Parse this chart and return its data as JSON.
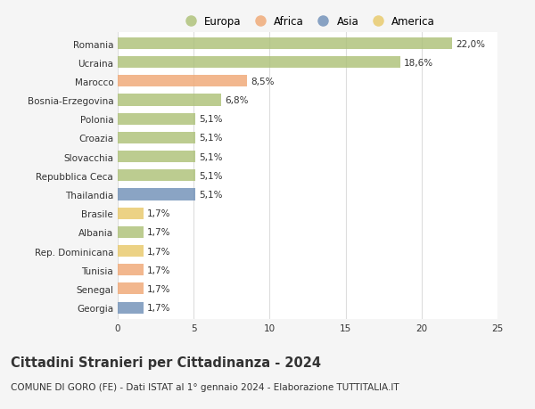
{
  "categories": [
    "Romania",
    "Ucraina",
    "Marocco",
    "Bosnia-Erzegovina",
    "Polonia",
    "Croazia",
    "Slovacchia",
    "Repubblica Ceca",
    "Thailandia",
    "Brasile",
    "Albania",
    "Rep. Dominicana",
    "Tunisia",
    "Senegal",
    "Georgia"
  ],
  "values": [
    22.0,
    18.6,
    8.5,
    6.8,
    5.1,
    5.1,
    5.1,
    5.1,
    5.1,
    1.7,
    1.7,
    1.7,
    1.7,
    1.7,
    1.7
  ],
  "labels": [
    "22,0%",
    "18,6%",
    "8,5%",
    "6,8%",
    "5,1%",
    "5,1%",
    "5,1%",
    "5,1%",
    "5,1%",
    "1,7%",
    "1,7%",
    "1,7%",
    "1,7%",
    "1,7%",
    "1,7%"
  ],
  "colors": [
    "#adc178",
    "#adc178",
    "#f0a875",
    "#adc178",
    "#adc178",
    "#adc178",
    "#adc178",
    "#adc178",
    "#7090b8",
    "#e8c96a",
    "#adc178",
    "#e8c96a",
    "#f0a875",
    "#f0a875",
    "#7090b8"
  ],
  "continent_colors": {
    "Europa": "#adc178",
    "Africa": "#f0a875",
    "Asia": "#7090b8",
    "America": "#e8c96a"
  },
  "legend_labels": [
    "Europa",
    "Africa",
    "Asia",
    "America"
  ],
  "title": "Cittadini Stranieri per Cittadinanza - 2024",
  "subtitle": "COMUNE DI GORO (FE) - Dati ISTAT al 1° gennaio 2024 - Elaborazione TUTTITALIA.IT",
  "xlim": [
    0,
    25
  ],
  "xticks": [
    0,
    5,
    10,
    15,
    20,
    25
  ],
  "background_color": "#f5f5f5",
  "plot_background": "#ffffff",
  "grid_color": "#dddddd",
  "text_color": "#333333",
  "title_fontsize": 10.5,
  "subtitle_fontsize": 7.5,
  "label_fontsize": 7.5,
  "tick_fontsize": 7.5,
  "legend_fontsize": 8.5,
  "bar_height": 0.62,
  "bar_alpha": 0.82
}
